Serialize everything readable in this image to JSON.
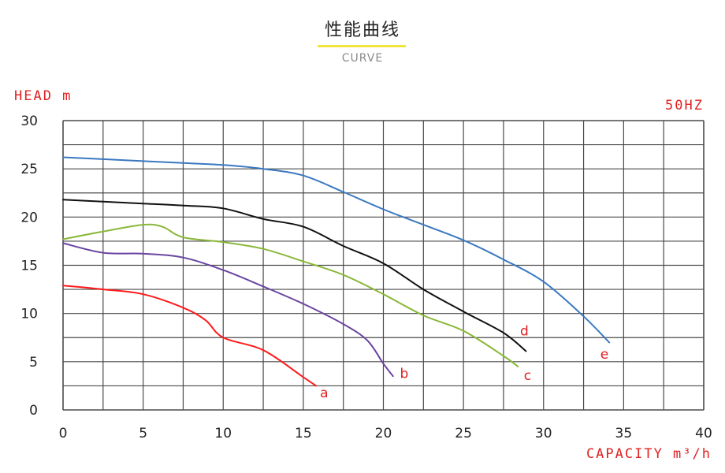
{
  "header": {
    "title_zh": "性能曲线",
    "title_en": "CURVE"
  },
  "chart_data": {
    "type": "line",
    "ylabel": "HEAD m",
    "xlabel": "CAPACITY m³/h",
    "frequency_label": "50HZ",
    "xlim": [
      0,
      40
    ],
    "ylim": [
      0,
      30
    ],
    "x_ticks": [
      0,
      5,
      10,
      15,
      20,
      25,
      30,
      35,
      40
    ],
    "y_ticks": [
      0,
      5,
      10,
      15,
      20,
      25,
      30
    ],
    "grid": true,
    "series": [
      {
        "name": "a",
        "color": "#ff1a1a",
        "x": [
          0,
          2.5,
          5,
          7.5,
          8.9,
          10,
          12.5,
          15,
          15.8
        ],
        "y": [
          12.9,
          12.5,
          12.0,
          10.6,
          9.3,
          7.5,
          6.2,
          3.4,
          2.5
        ]
      },
      {
        "name": "b",
        "color": "#6a45a0",
        "x": [
          0,
          2.5,
          5,
          7.5,
          10,
          12.5,
          15,
          17.5,
          19,
          20,
          20.6
        ],
        "y": [
          17.3,
          16.3,
          16.2,
          15.8,
          14.5,
          12.8,
          11.0,
          8.9,
          7.2,
          4.8,
          3.5
        ]
      },
      {
        "name": "c",
        "color": "#8ab83a",
        "x": [
          0,
          2.5,
          5,
          6.2,
          7.5,
          10,
          12.5,
          15,
          17.5,
          20,
          22.5,
          25,
          27.5,
          28.4
        ],
        "y": [
          17.7,
          18.5,
          19.2,
          19.0,
          17.9,
          17.4,
          16.7,
          15.4,
          14.0,
          12.0,
          9.8,
          8.2,
          5.6,
          4.5
        ]
      },
      {
        "name": "d",
        "color": "#111111",
        "x": [
          0,
          2.5,
          5,
          7.5,
          10,
          12.5,
          15,
          17.5,
          20,
          22.5,
          25,
          27.5,
          28.9
        ],
        "y": [
          21.8,
          21.6,
          21.4,
          21.2,
          20.9,
          19.8,
          19.0,
          17.0,
          15.2,
          12.5,
          10.2,
          8.0,
          6.1
        ]
      },
      {
        "name": "e",
        "color": "#3a78c0",
        "x": [
          0,
          2.5,
          5,
          7.5,
          10,
          12.5,
          15,
          17.5,
          20,
          22.5,
          25,
          27.5,
          30,
          32.5,
          34.1
        ],
        "y": [
          26.2,
          26.0,
          25.8,
          25.6,
          25.4,
          25.0,
          24.3,
          22.6,
          20.8,
          19.2,
          17.6,
          15.6,
          13.3,
          9.7,
          7.0
        ]
      }
    ],
    "label_points": {
      "a": [
        16.3,
        1.8
      ],
      "b": [
        21.3,
        3.8
      ],
      "c": [
        29.0,
        3.6
      ],
      "d": [
        28.8,
        8.2
      ],
      "e": [
        33.8,
        5.8
      ]
    }
  }
}
